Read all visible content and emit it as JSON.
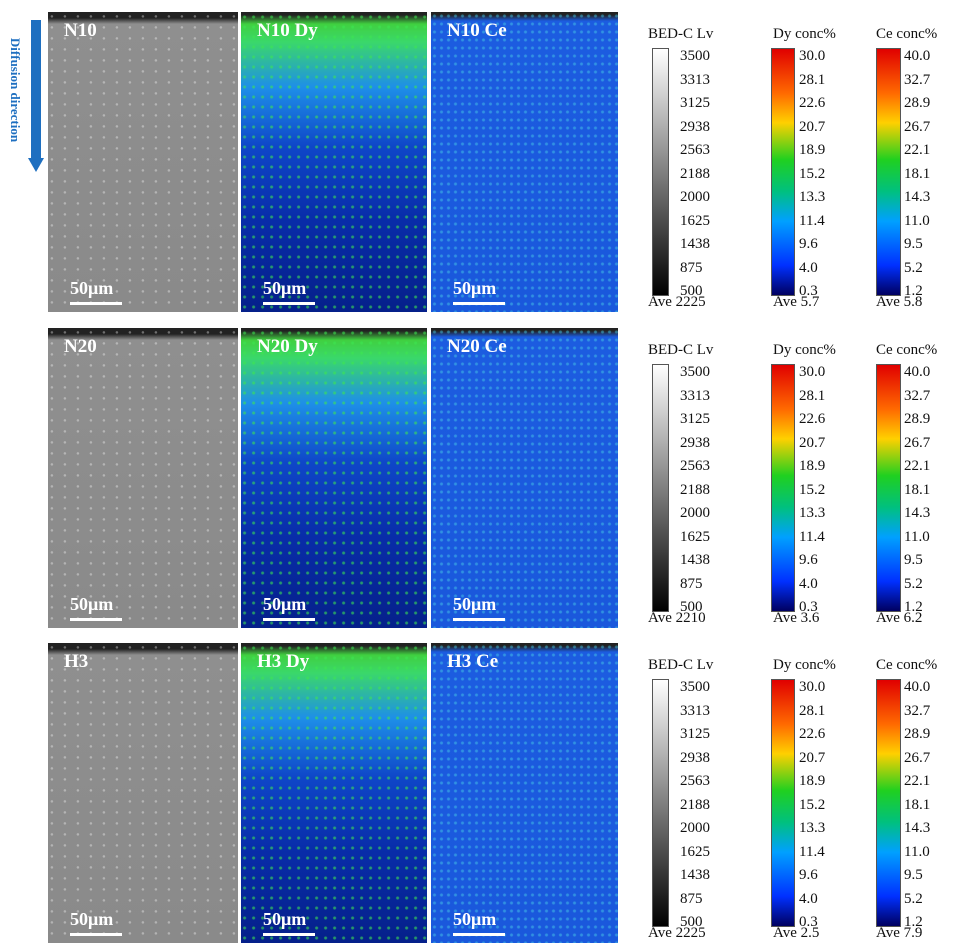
{
  "side_label": "Diffusion direction",
  "rows": [
    {
      "panels": [
        {
          "label": "N10",
          "scale": "50μm"
        },
        {
          "label": "N10 Dy",
          "scale": "50μm"
        },
        {
          "label": "N10 Ce",
          "scale": "50μm"
        }
      ],
      "legends": [
        {
          "title": "BED-C Lv",
          "ticks": [
            "3500",
            "3313",
            "3125",
            "2938",
            "2563",
            "2188",
            "2000",
            "1625",
            "1438",
            "875",
            "500"
          ],
          "average": "Ave 2225"
        },
        {
          "title": "Dy conc%",
          "ticks": [
            "30.0",
            "28.1",
            "22.6",
            "20.7",
            "18.9",
            "15.2",
            "13.3",
            "11.4",
            "9.6",
            "4.0",
            "0.3"
          ],
          "average": "Ave 5.7"
        },
        {
          "title": "Ce conc%",
          "ticks": [
            "40.0",
            "32.7",
            "28.9",
            "26.7",
            "22.1",
            "18.1",
            "14.3",
            "11.0",
            "9.5",
            "5.2",
            "1.2"
          ],
          "average": "Ave 5.8"
        }
      ]
    },
    {
      "panels": [
        {
          "label": "N20",
          "scale": "50μm"
        },
        {
          "label": "N20 Dy",
          "scale": "50μm"
        },
        {
          "label": "N20 Ce",
          "scale": "50μm"
        }
      ],
      "legends": [
        {
          "title": "BED-C Lv",
          "ticks": [
            "3500",
            "3313",
            "3125",
            "2938",
            "2563",
            "2188",
            "2000",
            "1625",
            "1438",
            "875",
            "500"
          ],
          "average": "Ave 2210"
        },
        {
          "title": "Dy conc%",
          "ticks": [
            "30.0",
            "28.1",
            "22.6",
            "20.7",
            "18.9",
            "15.2",
            "13.3",
            "11.4",
            "9.6",
            "4.0",
            "0.3"
          ],
          "average": "Ave 3.6"
        },
        {
          "title": "Ce conc%",
          "ticks": [
            "40.0",
            "32.7",
            "28.9",
            "26.7",
            "22.1",
            "18.1",
            "14.3",
            "11.0",
            "9.5",
            "5.2",
            "1.2"
          ],
          "average": "Ave 6.2"
        }
      ]
    },
    {
      "panels": [
        {
          "label": "H3",
          "scale": "50μm"
        },
        {
          "label": "H3 Dy",
          "scale": "50μm"
        },
        {
          "label": "H3 Ce",
          "scale": "50μm"
        }
      ],
      "legends": [
        {
          "title": "BED-C Lv",
          "ticks": [
            "3500",
            "3313",
            "3125",
            "2938",
            "2563",
            "2188",
            "2000",
            "1625",
            "1438",
            "875",
            "500"
          ],
          "average": "Ave 2225"
        },
        {
          "title": "Dy conc%",
          "ticks": [
            "30.0",
            "28.1",
            "22.6",
            "20.7",
            "18.9",
            "15.2",
            "13.3",
            "11.4",
            "9.6",
            "4.0",
            "0.3"
          ],
          "average": "Ave 2.5"
        },
        {
          "title": "Ce conc%",
          "ticks": [
            "40.0",
            "32.7",
            "28.9",
            "26.7",
            "22.1",
            "18.1",
            "14.3",
            "11.0",
            "9.5",
            "5.2",
            "1.2"
          ],
          "average": "Ave 7.9"
        }
      ]
    }
  ]
}
